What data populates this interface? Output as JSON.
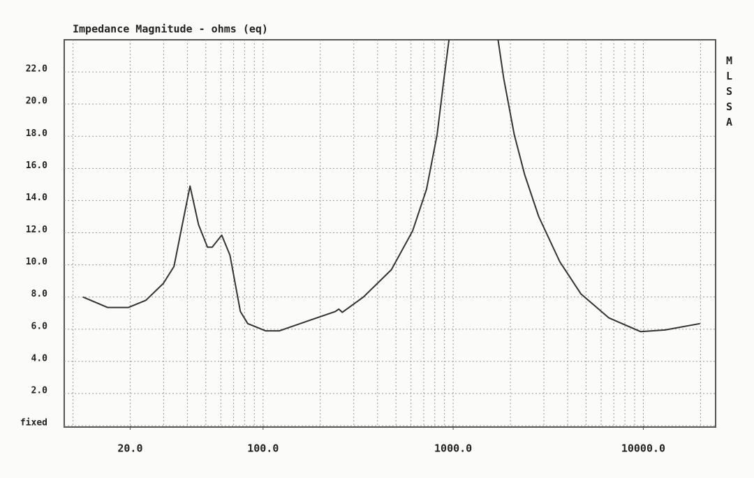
{
  "chart_data": {
    "type": "line",
    "title": "Impedance Magnitude - ohms (eq)",
    "side_label": "MLSSA",
    "log_x": true,
    "grid": true,
    "color": "#333333",
    "xlim": [
      9,
      24000
    ],
    "xticks": [
      {
        "value": 20,
        "label": "20.0"
      },
      {
        "value": 100,
        "label": "100.0"
      },
      {
        "value": 1000,
        "label": "1000.0"
      },
      {
        "value": 10000,
        "label": "10000.0"
      }
    ],
    "x_grid": [
      10,
      20,
      30,
      40,
      50,
      60,
      70,
      80,
      90,
      100,
      200,
      300,
      400,
      500,
      600,
      700,
      800,
      900,
      1000,
      2000,
      3000,
      4000,
      5000,
      6000,
      7000,
      8000,
      9000,
      10000,
      20000
    ],
    "ylim": [
      0,
      24
    ],
    "yticks": [
      {
        "value": 0,
        "label": "fixed"
      },
      {
        "value": 2,
        "label": "2.0"
      },
      {
        "value": 4,
        "label": "4.0"
      },
      {
        "value": 6,
        "label": "6.0"
      },
      {
        "value": 8,
        "label": "8.0"
      },
      {
        "value": 10,
        "label": "10.0"
      },
      {
        "value": 12,
        "label": "12.0"
      },
      {
        "value": 14,
        "label": "14.0"
      },
      {
        "value": 16,
        "label": "16.0"
      },
      {
        "value": 18,
        "label": "18.0"
      },
      {
        "value": 20,
        "label": "20.0"
      },
      {
        "value": 22,
        "label": "22.0"
      }
    ],
    "x": [
      11.3,
      15.2,
      19.6,
      24.2,
      29.9,
      34,
      37.6,
      41.3,
      45.8,
      51,
      54,
      60.6,
      67,
      76,
      83,
      103,
      122,
      171,
      240,
      250,
      261,
      337,
      473,
      611,
      724,
      823,
      895,
      950,
      1300,
      1722,
      1844,
      2095,
      2378,
      2818,
      3636,
      4695,
      6594,
      9669,
      13000,
      19900
    ],
    "values": [
      8.0,
      7.35,
      7.35,
      7.8,
      8.85,
      9.9,
      12.5,
      14.9,
      12.5,
      11.1,
      11.1,
      11.85,
      10.6,
      7.1,
      6.35,
      5.9,
      5.9,
      6.5,
      7.1,
      7.25,
      7.05,
      8.0,
      9.7,
      12.1,
      14.7,
      18.1,
      21.6,
      24,
      null,
      24,
      21.6,
      18.1,
      15.6,
      13.0,
      10.2,
      8.2,
      6.7,
      5.85,
      5.95,
      6.35
    ]
  }
}
